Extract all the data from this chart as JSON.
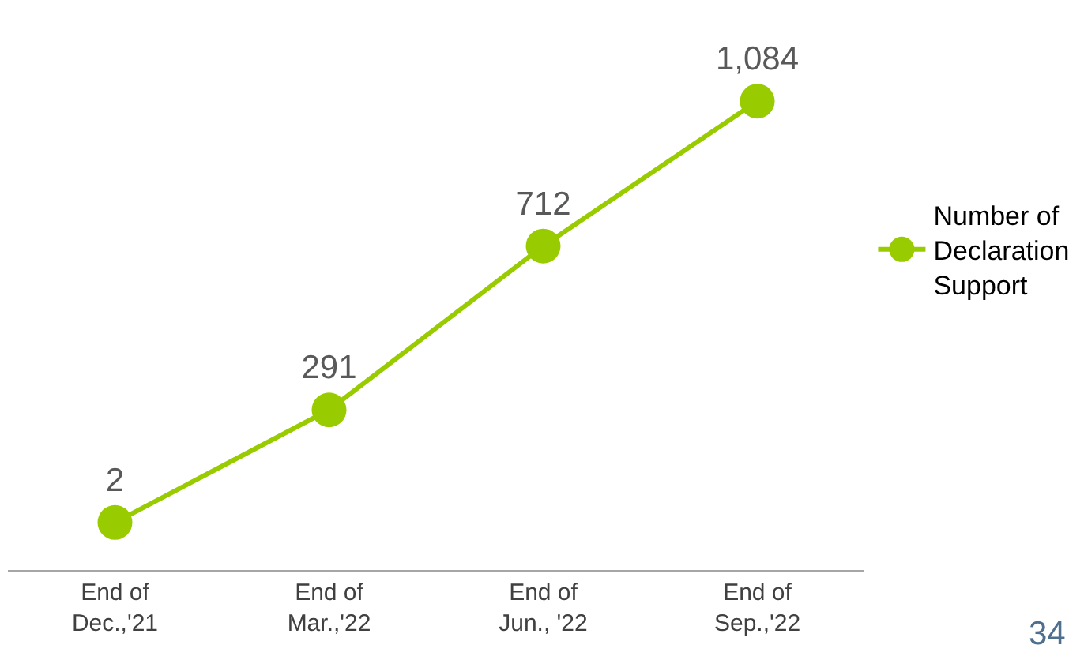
{
  "chart_data": {
    "type": "line",
    "categories": [
      "End of\nDec.,'21",
      "End of\nMar.,'22",
      "End of\nJun., '22",
      "End of\nSep.,'22"
    ],
    "series": [
      {
        "name": "Number of\nDeclaration\nSupport",
        "color": "#99cc00",
        "values": [
          2,
          291,
          712,
          1084
        ],
        "value_labels": [
          "2",
          "291",
          "712",
          "1,084"
        ]
      }
    ],
    "tick_labels": "x",
    "legend": "right",
    "marker": "circle",
    "line_style": "solid",
    "annotations": [
      "34"
    ]
  }
}
